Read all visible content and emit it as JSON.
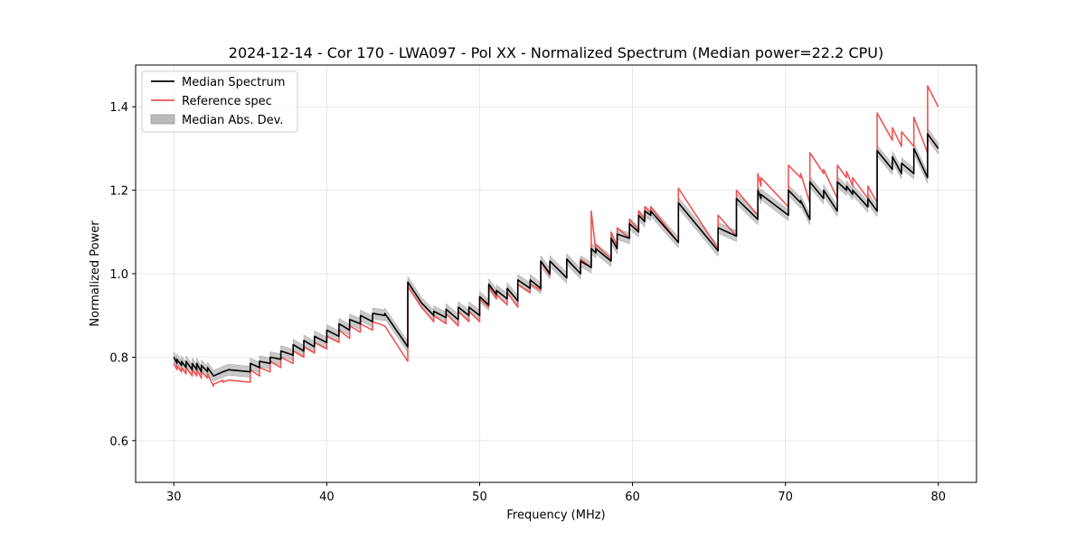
{
  "chart_data": {
    "type": "line",
    "title": "2024-12-14 - Cor 170 - LWA097 - Pol XX - Normalized Spectrum (Median power=22.2 CPU)",
    "xlabel": "Frequency (MHz)",
    "ylabel": "Normalized Power",
    "xlim": [
      27.5,
      82.5
    ],
    "ylim": [
      0.5,
      1.5
    ],
    "xticks": [
      30,
      40,
      50,
      60,
      70,
      80
    ],
    "xtick_labels": [
      "30",
      "40",
      "50",
      "60",
      "70",
      "80"
    ],
    "yticks": [
      0.6,
      0.8,
      1.0,
      1.2,
      1.4
    ],
    "ytick_labels": [
      "0.6",
      "0.8",
      "1.0",
      "1.2",
      "1.4"
    ],
    "grid": true,
    "legend_position": "top-left",
    "legend": [
      "Median Spectrum",
      "Reference spec",
      "Median Abs. Dev."
    ],
    "colors": {
      "median": "#000000",
      "reference": "#ee5555",
      "mad": "#bbbbbb"
    },
    "mad_halfwidth": 0.013,
    "series": [
      {
        "name": "Median Spectrum",
        "x": [
          30.0,
          30.2,
          30.2,
          30.5,
          30.5,
          30.8,
          30.8,
          31.2,
          31.2,
          31.5,
          31.5,
          31.8,
          31.8,
          32.2,
          32.2,
          32.6,
          32.6,
          33.2,
          33.2,
          33.6,
          33.6,
          35.0,
          35.0,
          35.6,
          35.6,
          36.3,
          36.3,
          37.0,
          37.0,
          37.8,
          37.8,
          38.5,
          38.5,
          39.2,
          39.2,
          40.0,
          40.0,
          40.8,
          40.8,
          41.5,
          41.5,
          42.2,
          42.2,
          43.0,
          43.0,
          43.8,
          43.8,
          45.3,
          45.3,
          46.2,
          46.2,
          47.0,
          47.0,
          47.8,
          47.8,
          48.6,
          48.6,
          49.3,
          49.3,
          50.0,
          50.0,
          50.6,
          50.6,
          51.1,
          51.1,
          51.8,
          51.8,
          52.5,
          52.5,
          53.3,
          53.3,
          54.0,
          54.0,
          54.6,
          54.6,
          55.7,
          55.7,
          56.6,
          56.6,
          57.3,
          57.3,
          57.6,
          57.6,
          58.6,
          58.6,
          59.0,
          59.0,
          59.8,
          59.8,
          60.4,
          60.4,
          60.8,
          60.8,
          61.2,
          61.2,
          63.0,
          63.0,
          65.6,
          65.6,
          66.8,
          66.8,
          68.2,
          68.2,
          68.4,
          68.4,
          70.2,
          70.2,
          71.0,
          71.0,
          71.6,
          71.6,
          72.5,
          72.5,
          73.4,
          73.4,
          74.0,
          74.0,
          74.4,
          74.4,
          75.4,
          75.4,
          76.0,
          76.0,
          77.0,
          77.0,
          77.6,
          77.6,
          78.4,
          78.4,
          79.3,
          79.3,
          80.0
        ],
        "y": [
          0.8,
          0.785,
          0.795,
          0.78,
          0.79,
          0.775,
          0.79,
          0.77,
          0.785,
          0.77,
          0.785,
          0.765,
          0.78,
          0.765,
          0.775,
          0.755,
          0.755,
          0.765,
          0.765,
          0.77,
          0.77,
          0.765,
          0.785,
          0.775,
          0.79,
          0.785,
          0.8,
          0.795,
          0.815,
          0.805,
          0.83,
          0.815,
          0.84,
          0.825,
          0.85,
          0.835,
          0.865,
          0.85,
          0.88,
          0.865,
          0.89,
          0.88,
          0.9,
          0.885,
          0.905,
          0.9,
          0.905,
          0.825,
          0.98,
          0.93,
          0.93,
          0.9,
          0.91,
          0.895,
          0.915,
          0.89,
          0.92,
          0.9,
          0.92,
          0.9,
          0.945,
          0.925,
          0.975,
          0.95,
          0.96,
          0.94,
          0.965,
          0.935,
          0.985,
          0.965,
          0.985,
          0.965,
          1.03,
          1.0,
          1.03,
          0.99,
          1.035,
          1.0,
          1.03,
          1.015,
          1.06,
          1.05,
          1.06,
          1.03,
          1.085,
          1.06,
          1.095,
          1.085,
          1.12,
          1.1,
          1.14,
          1.125,
          1.15,
          1.14,
          1.15,
          1.075,
          1.17,
          1.055,
          1.11,
          1.09,
          1.18,
          1.13,
          1.2,
          1.18,
          1.19,
          1.14,
          1.2,
          1.17,
          1.175,
          1.13,
          1.22,
          1.18,
          1.2,
          1.15,
          1.22,
          1.2,
          1.21,
          1.19,
          1.2,
          1.16,
          1.18,
          1.15,
          1.295,
          1.25,
          1.28,
          1.24,
          1.265,
          1.24,
          1.3,
          1.23,
          1.335,
          1.3
        ]
      },
      {
        "name": "Reference spec",
        "x": [
          30.0,
          30.2,
          30.2,
          30.5,
          30.5,
          30.8,
          30.8,
          31.2,
          31.2,
          31.5,
          31.5,
          31.8,
          31.8,
          32.2,
          32.2,
          32.6,
          32.6,
          33.2,
          33.2,
          33.6,
          33.6,
          35.0,
          35.0,
          35.6,
          35.6,
          36.3,
          36.3,
          37.0,
          37.0,
          37.8,
          37.8,
          38.5,
          38.5,
          39.2,
          39.2,
          40.0,
          40.0,
          40.8,
          40.8,
          41.5,
          41.5,
          42.2,
          42.2,
          43.0,
          43.0,
          43.8,
          43.8,
          45.3,
          45.3,
          46.2,
          46.2,
          47.0,
          47.0,
          47.8,
          47.8,
          48.6,
          48.6,
          49.3,
          49.3,
          50.0,
          50.0,
          50.6,
          50.6,
          51.1,
          51.1,
          51.8,
          51.8,
          52.5,
          52.5,
          53.3,
          53.3,
          54.0,
          54.0,
          54.6,
          54.6,
          55.7,
          55.7,
          56.6,
          56.6,
          57.3,
          57.3,
          57.6,
          57.6,
          58.6,
          58.6,
          59.0,
          59.0,
          59.8,
          59.8,
          60.4,
          60.4,
          60.8,
          60.8,
          61.2,
          61.2,
          63.0,
          63.0,
          65.6,
          65.6,
          66.8,
          66.8,
          68.2,
          68.2,
          68.4,
          68.4,
          70.2,
          70.2,
          71.0,
          71.0,
          71.6,
          71.6,
          72.5,
          72.5,
          73.4,
          73.4,
          74.0,
          74.0,
          74.4,
          74.4,
          75.4,
          75.4,
          76.0,
          76.0,
          77.0,
          77.0,
          77.6,
          77.6,
          78.4,
          78.4,
          79.3,
          79.3,
          80.0
        ],
        "y": [
          0.785,
          0.77,
          0.78,
          0.765,
          0.775,
          0.76,
          0.775,
          0.755,
          0.77,
          0.755,
          0.77,
          0.75,
          0.765,
          0.75,
          0.76,
          0.73,
          0.735,
          0.745,
          0.74,
          0.745,
          0.745,
          0.74,
          0.77,
          0.755,
          0.775,
          0.765,
          0.79,
          0.775,
          0.8,
          0.785,
          0.815,
          0.8,
          0.825,
          0.81,
          0.835,
          0.82,
          0.85,
          0.835,
          0.865,
          0.845,
          0.875,
          0.86,
          0.88,
          0.865,
          0.885,
          0.875,
          0.875,
          0.79,
          0.97,
          0.92,
          0.92,
          0.885,
          0.9,
          0.88,
          0.905,
          0.875,
          0.91,
          0.885,
          0.91,
          0.885,
          0.94,
          0.92,
          0.97,
          0.94,
          0.95,
          0.925,
          0.955,
          0.92,
          0.975,
          0.955,
          0.975,
          0.96,
          1.03,
          0.995,
          1.03,
          0.99,
          1.035,
          1.0,
          1.035,
          1.015,
          1.15,
          1.055,
          1.07,
          1.035,
          1.1,
          1.065,
          1.11,
          1.085,
          1.13,
          1.105,
          1.15,
          1.13,
          1.16,
          1.145,
          1.16,
          1.075,
          1.205,
          1.06,
          1.14,
          1.09,
          1.2,
          1.14,
          1.24,
          1.21,
          1.23,
          1.16,
          1.26,
          1.23,
          1.24,
          1.17,
          1.29,
          1.24,
          1.25,
          1.18,
          1.26,
          1.23,
          1.245,
          1.21,
          1.23,
          1.18,
          1.21,
          1.17,
          1.385,
          1.32,
          1.35,
          1.305,
          1.34,
          1.305,
          1.375,
          1.29,
          1.45,
          1.4
        ]
      }
    ]
  }
}
